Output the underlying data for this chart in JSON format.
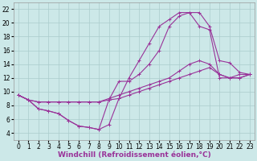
{
  "bg_color": "#cce8e8",
  "line_color": "#993399",
  "grid_color": "#aacccc",
  "xlabel": "Windchill (Refroidissement éolien,°C)",
  "xlabel_fontsize": 6.5,
  "tick_fontsize": 5.5,
  "xlim": [
    -0.5,
    23.5
  ],
  "ylim": [
    3,
    23
  ],
  "yticks": [
    4,
    6,
    8,
    10,
    12,
    14,
    16,
    18,
    20,
    22
  ],
  "xticks": [
    0,
    1,
    2,
    3,
    4,
    5,
    6,
    7,
    8,
    9,
    10,
    11,
    12,
    13,
    14,
    15,
    16,
    17,
    18,
    19,
    20,
    21,
    22,
    23
  ],
  "line1_x": [
    0,
    1,
    2,
    3,
    4,
    5,
    6,
    7,
    8,
    9,
    10,
    11,
    12,
    13,
    14,
    15,
    16,
    17,
    18,
    19,
    20,
    21,
    22,
    23
  ],
  "line1_y": [
    9.5,
    8.8,
    7.5,
    7.2,
    6.8,
    5.8,
    5.0,
    4.8,
    4.5,
    5.2,
    9.0,
    12.0,
    14.5,
    17.0,
    19.5,
    20.5,
    21.5,
    21.5,
    21.5,
    19.5,
    14.5,
    14.2,
    12.8,
    12.5
  ],
  "line2_x": [
    0,
    1,
    2,
    3,
    4,
    5,
    6,
    7,
    8,
    9,
    10,
    11,
    12,
    13,
    14,
    15,
    16,
    17,
    18,
    19,
    20,
    21,
    22,
    23
  ],
  "line2_y": [
    9.5,
    8.8,
    7.5,
    7.2,
    6.8,
    5.8,
    5.0,
    4.8,
    4.5,
    8.8,
    11.5,
    11.5,
    12.5,
    14.0,
    16.0,
    19.5,
    21.0,
    21.5,
    19.5,
    19.0,
    12.0,
    12.0,
    12.5,
    12.5
  ],
  "line3_x": [
    0,
    1,
    2,
    3,
    4,
    5,
    6,
    7,
    8,
    9,
    10,
    11,
    12,
    13,
    14,
    15,
    16,
    17,
    18,
    19,
    20,
    21,
    22,
    23
  ],
  "line3_y": [
    9.5,
    8.8,
    8.5,
    8.5,
    8.5,
    8.5,
    8.5,
    8.5,
    8.5,
    9.0,
    9.5,
    10.0,
    10.5,
    11.0,
    11.5,
    12.0,
    13.0,
    14.0,
    14.5,
    14.0,
    12.5,
    12.0,
    12.0,
    12.5
  ],
  "line4_x": [
    0,
    1,
    2,
    3,
    4,
    5,
    6,
    7,
    8,
    9,
    10,
    11,
    12,
    13,
    14,
    15,
    16,
    17,
    18,
    19,
    20,
    21,
    22,
    23
  ],
  "line4_y": [
    9.5,
    8.8,
    8.5,
    8.5,
    8.5,
    8.5,
    8.5,
    8.5,
    8.5,
    8.8,
    9.0,
    9.5,
    10.0,
    10.5,
    11.0,
    11.5,
    12.0,
    12.5,
    13.0,
    13.5,
    12.5,
    12.0,
    12.0,
    12.5
  ]
}
